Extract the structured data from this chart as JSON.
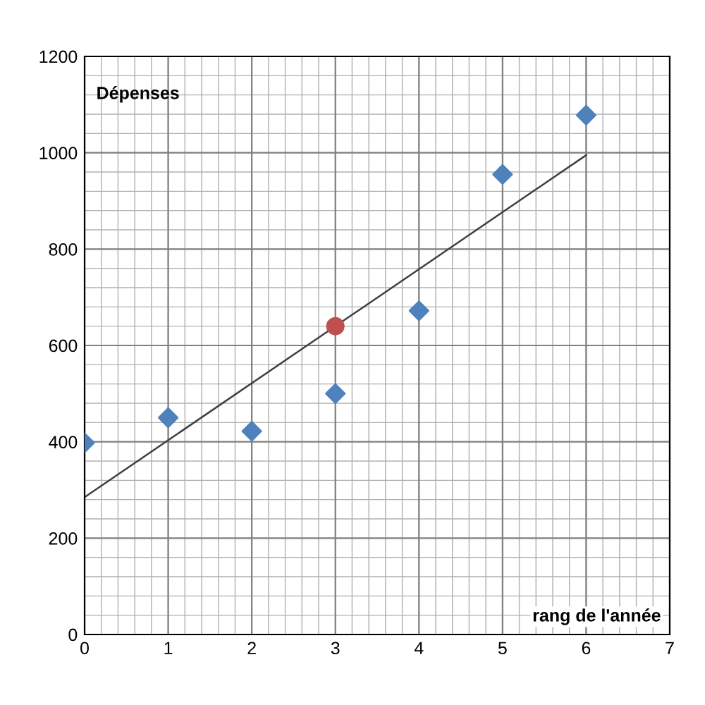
{
  "chart_data": {
    "type": "scatter",
    "xlabel": "rang de l'année",
    "ylabel": "Dépenses",
    "series": [
      {
        "color": "#4f81bd",
        "marker": "diamond",
        "x": [
          0,
          1,
          2,
          3,
          4,
          5,
          6
        ],
        "values": [
          398,
          450,
          422,
          500,
          672,
          955,
          1078
        ]
      },
      {
        "color": "#c0504d",
        "marker": "circle",
        "x": [
          3
        ],
        "values": [
          640
        ]
      },
      {
        "type": "line",
        "color": "#404040",
        "marker": "none",
        "x": [
          0,
          6
        ],
        "values": [
          285,
          995
        ]
      }
    ],
    "xlim": [
      0,
      7
    ],
    "ylim": [
      0,
      1200
    ],
    "xticks": [
      0,
      1,
      2,
      3,
      4,
      5,
      6,
      7
    ],
    "yticks": [
      0,
      200,
      400,
      600,
      800,
      1000,
      1200
    ],
    "grid": true,
    "legend": false
  }
}
